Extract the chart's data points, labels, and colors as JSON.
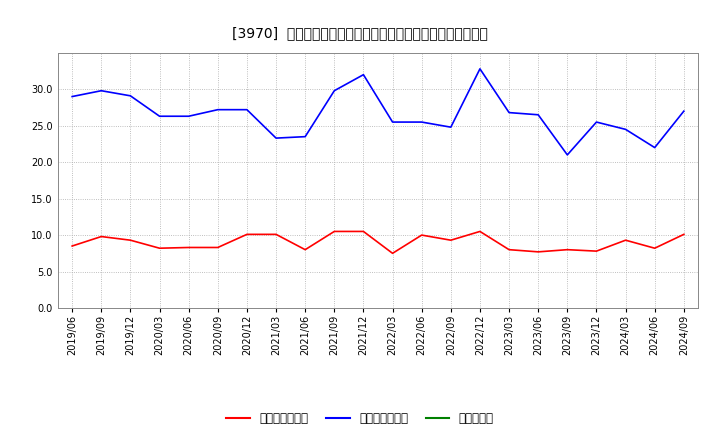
{
  "title": "[3970]  売上債権回転率、買入債務回転率、在庫回転率の推移",
  "x_labels": [
    "2019/06",
    "2019/09",
    "2019/12",
    "2020/03",
    "2020/06",
    "2020/09",
    "2020/12",
    "2021/03",
    "2021/06",
    "2021/09",
    "2021/12",
    "2022/03",
    "2022/06",
    "2022/09",
    "2022/12",
    "2023/03",
    "2023/06",
    "2023/09",
    "2023/12",
    "2024/03",
    "2024/06",
    "2024/09"
  ],
  "receivables_turnover": [
    8.5,
    9.8,
    9.3,
    8.2,
    8.3,
    8.3,
    10.1,
    10.1,
    8.0,
    10.5,
    10.5,
    7.5,
    10.0,
    9.3,
    10.5,
    8.0,
    7.7,
    8.0,
    7.8,
    9.3,
    8.2,
    10.1
  ],
  "payables_turnover": [
    29.0,
    29.8,
    29.1,
    26.3,
    26.3,
    27.2,
    27.2,
    23.3,
    23.5,
    29.8,
    32.0,
    25.5,
    25.5,
    24.8,
    32.8,
    26.8,
    26.5,
    21.0,
    25.5,
    24.5,
    22.0,
    27.0
  ],
  "receivables_color": "#ff0000",
  "payables_color": "#0000ff",
  "inventory_color": "#008000",
  "background_color": "#ffffff",
  "grid_color": "#aaaaaa",
  "ylim": [
    0,
    35
  ],
  "yticks": [
    0.0,
    5.0,
    10.0,
    15.0,
    20.0,
    25.0,
    30.0
  ],
  "legend_labels": [
    "売上債権回転率",
    "買入債務回転率",
    "在庫回転率"
  ],
  "title_fontsize": 10,
  "tick_fontsize": 7,
  "legend_fontsize": 8.5
}
